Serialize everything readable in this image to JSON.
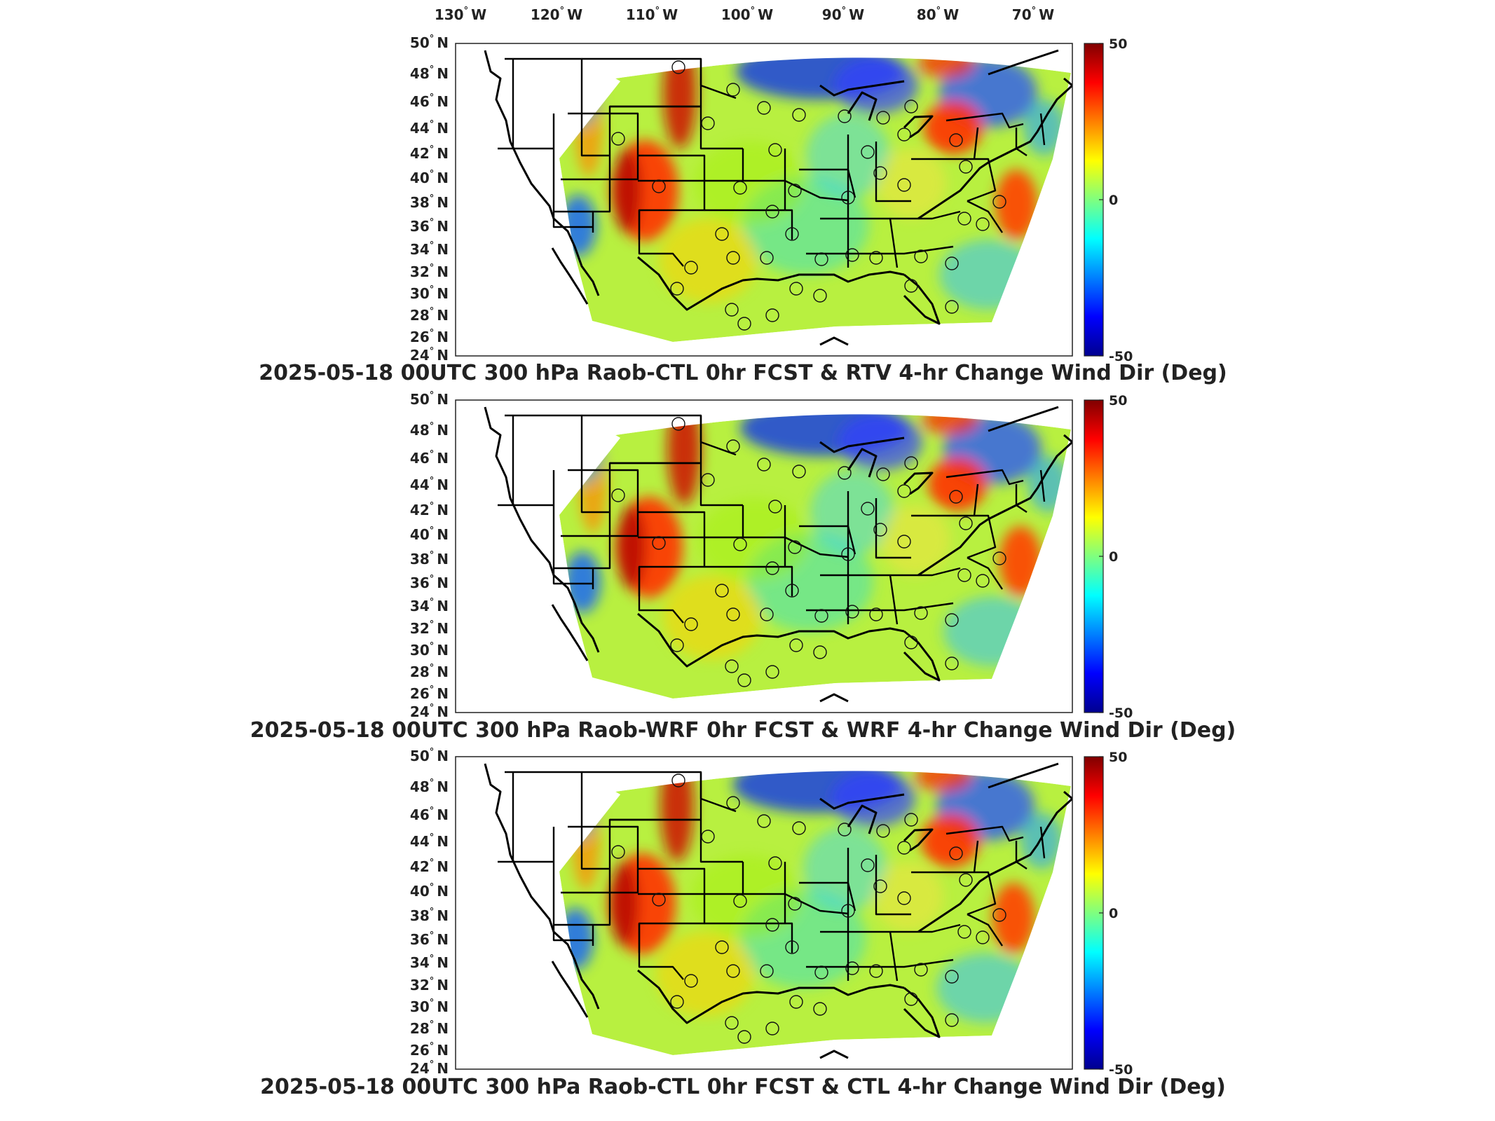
{
  "figure": {
    "lon_ticks": [
      {
        "value": "130",
        "hemi": "W"
      },
      {
        "value": "120",
        "hemi": "W"
      },
      {
        "value": "110",
        "hemi": "W"
      },
      {
        "value": "100",
        "hemi": "W"
      },
      {
        "value": "90",
        "hemi": "W"
      },
      {
        "value": "80",
        "hemi": "W"
      },
      {
        "value": "70",
        "hemi": "W"
      }
    ],
    "lat_ticks": [
      {
        "value": "50",
        "hemi": "N"
      },
      {
        "value": "48",
        "hemi": "N"
      },
      {
        "value": "46",
        "hemi": "N"
      },
      {
        "value": "44",
        "hemi": "N"
      },
      {
        "value": "42",
        "hemi": "N"
      },
      {
        "value": "40",
        "hemi": "N"
      },
      {
        "value": "38",
        "hemi": "N"
      },
      {
        "value": "36",
        "hemi": "N"
      },
      {
        "value": "34",
        "hemi": "N"
      },
      {
        "value": "32",
        "hemi": "N"
      },
      {
        "value": "30",
        "hemi": "N"
      },
      {
        "value": "28",
        "hemi": "N"
      },
      {
        "value": "26",
        "hemi": "N"
      },
      {
        "value": "24",
        "hemi": "N"
      }
    ],
    "degree_symbol": "°",
    "colorbar": {
      "min": -50,
      "max": 50,
      "ticks": [
        "50",
        "0",
        "-50"
      ],
      "colormap": "jet",
      "colors": [
        "#00008f",
        "#0000ff",
        "#00ffff",
        "#7fff7f",
        "#ffff00",
        "#ff0000",
        "#800000"
      ]
    },
    "panels": [
      {
        "title": "2025-05-18 00UTC 300 hPa Raob-CTL 0hr FCST & RTV 4-hr Change Wind Dir (Deg)"
      },
      {
        "title": "2025-05-18 00UTC 300 hPa Raob-WRF 0hr FCST & WRF 4-hr Change Wind Dir (Deg)"
      },
      {
        "title": "2025-05-18 00UTC 300 hPa Raob-CTL 0hr FCST & CTL 4-hr Change Wind Dir (Deg)"
      }
    ]
  }
}
